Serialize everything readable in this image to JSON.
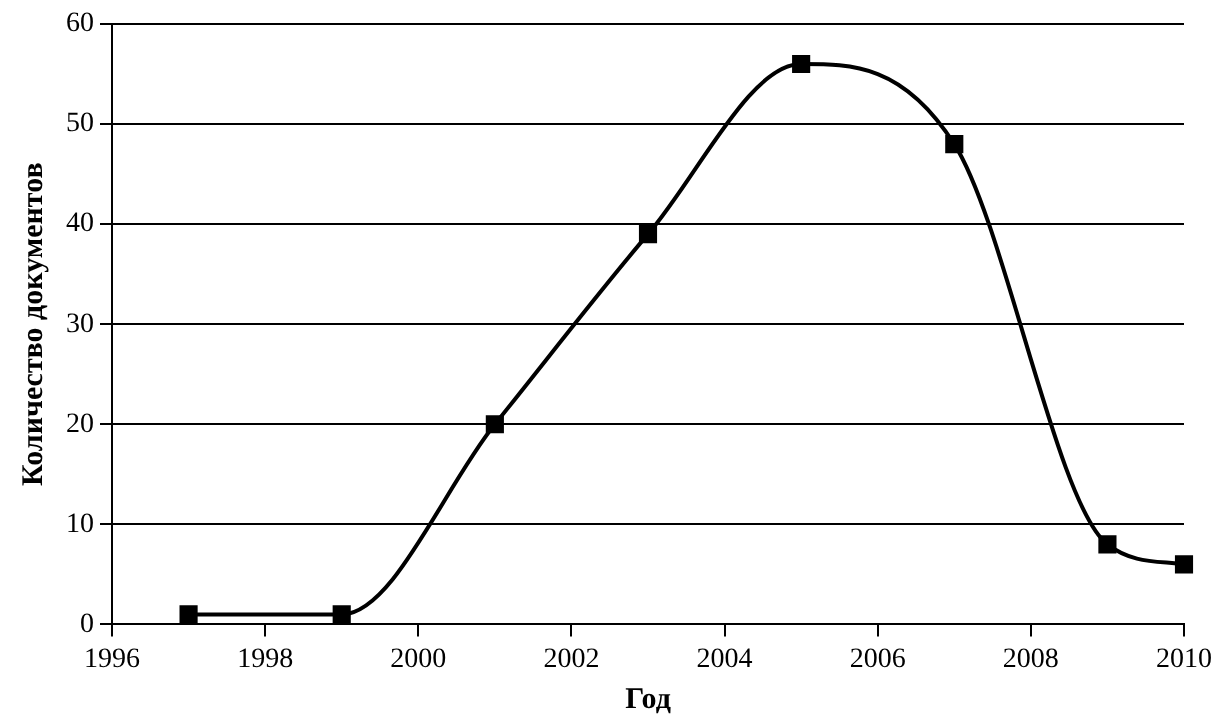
{
  "chart_data": {
    "type": "line",
    "xlabel": "Год",
    "ylabel": "Количество документов",
    "x": [
      1997,
      1999,
      2001,
      2003,
      2005,
      2007,
      2009,
      2010
    ],
    "series": [
      {
        "color": "#000000",
        "values": [
          1,
          1,
          20,
          39,
          56,
          48,
          8,
          6
        ]
      }
    ],
    "xlim": [
      1996,
      2010
    ],
    "xticks": [
      1996,
      1998,
      2000,
      2002,
      2004,
      2006,
      2008,
      2010
    ],
    "ylim": [
      0,
      60
    ],
    "yticks": [
      0,
      10,
      20,
      30,
      40,
      50,
      60
    ],
    "grid": "y",
    "legend": false,
    "marker": "square",
    "line_style": "solid"
  }
}
